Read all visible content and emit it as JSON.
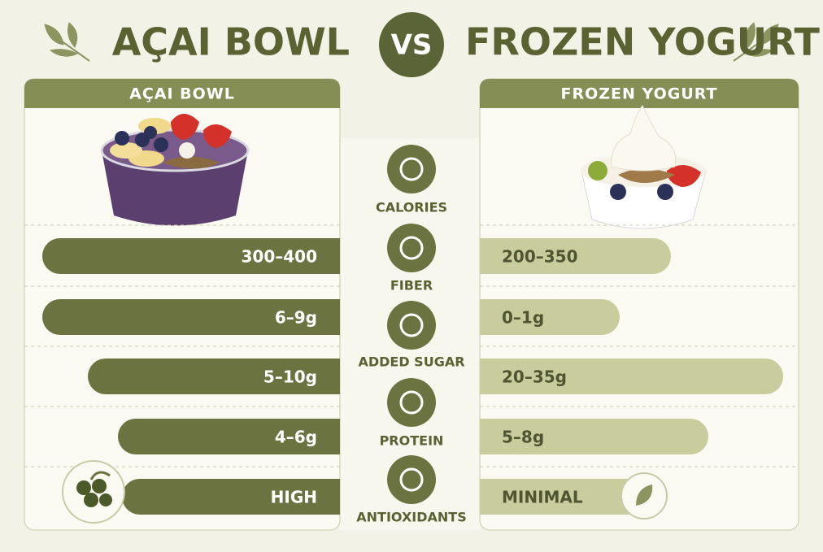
{
  "title": {
    "left": "AÇAI BOWL",
    "vs": "VS",
    "right": "FROZEN YOGURT"
  },
  "left_panel": {
    "header": "AÇAI BOWL",
    "rows": [
      "300–400",
      "6–9g",
      "5–10g",
      "4–6g",
      "HIGH"
    ]
  },
  "right_panel": {
    "header": "FROZEN YOGURT",
    "rows": [
      "200–350",
      "0–1g",
      "20–35g",
      "5–8g",
      "MINIMAL"
    ]
  },
  "metrics": [
    "CALORIES",
    "FIBER",
    "ADDED SUGAR",
    "PROTEIN",
    "ANTIOXIDANTS"
  ]
}
